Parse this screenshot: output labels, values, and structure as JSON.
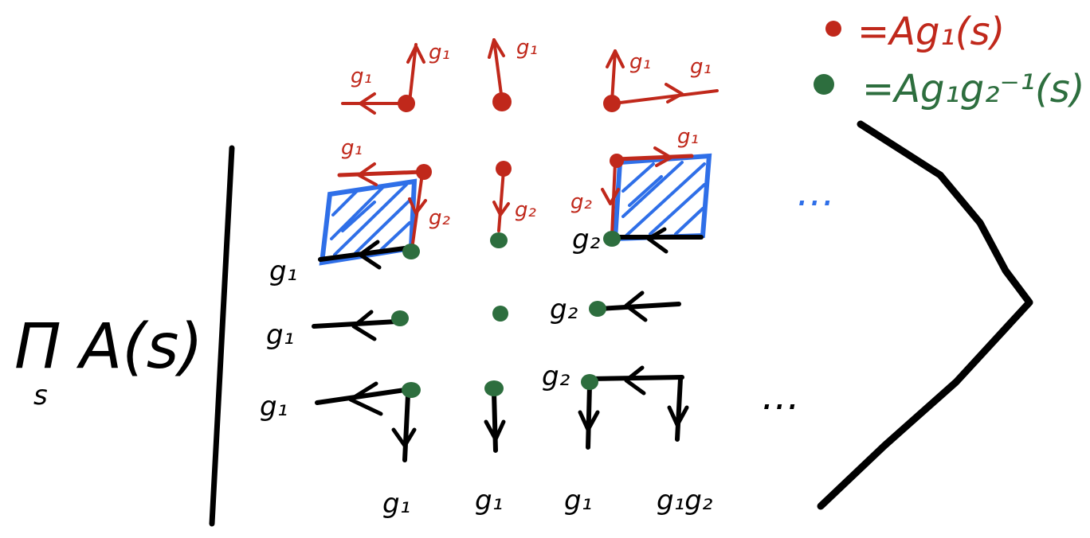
{
  "colors": {
    "black": "#000000",
    "red": "#c0281b",
    "green": "#2d6e3e",
    "blue": "#2f6fe8"
  },
  "legend": {
    "red_rhs": "=Ag₁(s)",
    "green_rhs": "=Ag₁g₂⁻¹(s)"
  },
  "left_expression": {
    "product": "Π",
    "product_index": "s",
    "body": "A(s)"
  },
  "labels": {
    "g1": "g₁",
    "g2": "g₂",
    "g1g2": "g₁g₂"
  },
  "bottom_labels": [
    "g₁",
    "g₁",
    "g₁",
    "g₁g₂"
  ],
  "row_labels": [
    "g₁",
    "g₁",
    "g₁"
  ],
  "ellipsis": "…"
}
